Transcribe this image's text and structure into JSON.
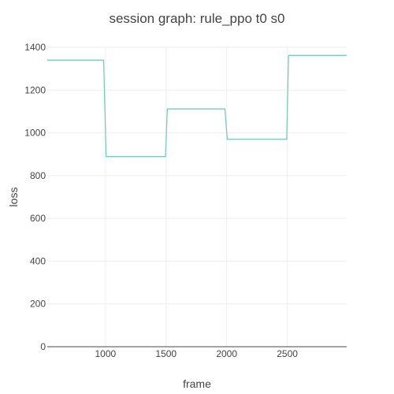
{
  "chart_data": {
    "type": "line",
    "title": "session graph: rule_ppo t0 s0",
    "xlabel": "frame",
    "ylabel": "loss",
    "xlim": [
      520,
      2990
    ],
    "ylim": [
      0,
      1400
    ],
    "xticks": [
      1000,
      1500,
      2000,
      2500
    ],
    "xtick_labels": [
      "1000",
      "1500",
      "2000",
      "2500"
    ],
    "yticks": [
      0,
      200,
      400,
      600,
      800,
      1000,
      1200,
      1400
    ],
    "ytick_labels": [
      "0",
      "200",
      "400",
      "600",
      "800",
      "1000",
      "1200",
      "1400"
    ],
    "grid": true,
    "legend": false,
    "series": [
      {
        "color": "#7ccab8",
        "x": [
          520,
          985,
          1005,
          1495,
          1510,
          1985,
          2005,
          2495,
          2510,
          2990
        ],
        "y": [
          1340,
          1340,
          889,
          889,
          1112,
          1112,
          970,
          970,
          1362,
          1362
        ]
      }
    ]
  }
}
